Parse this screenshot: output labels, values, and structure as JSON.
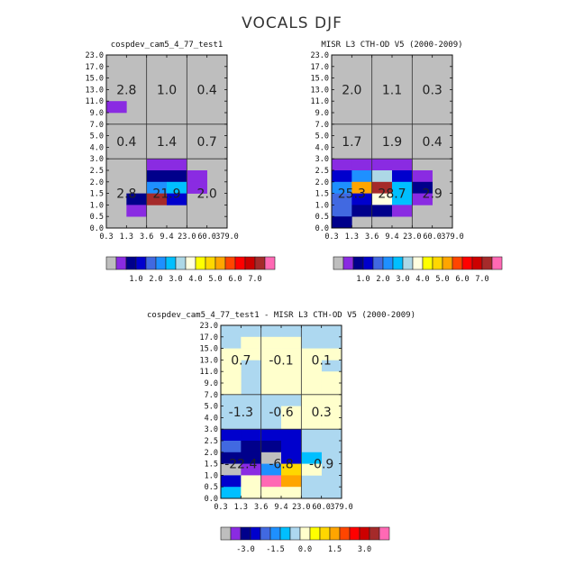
{
  "title": "VOCALS DJF",
  "chart_data": [
    {
      "type": "heatmap",
      "title": "cospdev_cam5_4_77_test1",
      "x_ticks": [
        "0.3",
        "1.3",
        "3.6",
        "9.4",
        "23.0",
        "60.0",
        "379.0"
      ],
      "y_ticks": [
        "0.0",
        "0.5",
        "1.0",
        "1.5",
        "2.0",
        "2.5",
        "3.0",
        "4.0",
        "5.0",
        "7.0",
        "9.0",
        "11.0",
        "13.0",
        "15.0",
        "17.0",
        "23.0"
      ],
      "background_color": "#bebebe",
      "colorbar": {
        "colors": [
          "#bebebe",
          "#8a2be2",
          "#00008b",
          "#0000cd",
          "#4169e1",
          "#1e90ff",
          "#00bfff",
          "#add8e6",
          "#ffffe0",
          "#ffff00",
          "#ffd700",
          "#ffa500",
          "#ff4500",
          "#ff0000",
          "#cc0000",
          "#a52a2a",
          "#ff69b4"
        ],
        "labels": [
          "1.0",
          "2.0",
          "3.0",
          "4.0",
          "5.0",
          "6.0",
          "7.0"
        ]
      },
      "cells": [
        {
          "x": 0,
          "y": 10,
          "color": "#8a2be2"
        },
        {
          "x": 2,
          "y": 5,
          "color": "#8a2be2"
        },
        {
          "x": 3,
          "y": 5,
          "color": "#8a2be2"
        },
        {
          "x": 2,
          "y": 4,
          "color": "#00008b"
        },
        {
          "x": 3,
          "y": 4,
          "color": "#00008b"
        },
        {
          "x": 4,
          "y": 4,
          "color": "#8a2be2"
        },
        {
          "x": 2,
          "y": 3,
          "color": "#1e90ff"
        },
        {
          "x": 3,
          "y": 3,
          "color": "#00bfff"
        },
        {
          "x": 4,
          "y": 3,
          "color": "#8a2be2"
        },
        {
          "x": 1,
          "y": 2,
          "color": "#00008b"
        },
        {
          "x": 2,
          "y": 2,
          "color": "#a52a2a"
        },
        {
          "x": 3,
          "y": 2,
          "color": "#0000cd"
        },
        {
          "x": 1,
          "y": 1,
          "color": "#8a2be2"
        }
      ],
      "region_totals": [
        {
          "label": "2.8",
          "col": 0,
          "row": 2
        },
        {
          "label": "1.0",
          "col": 1,
          "row": 2
        },
        {
          "label": "0.4",
          "col": 2,
          "row": 2
        },
        {
          "label": "0.4",
          "col": 0,
          "row": 1
        },
        {
          "label": "1.4",
          "col": 1,
          "row": 1
        },
        {
          "label": "0.7",
          "col": 2,
          "row": 1
        },
        {
          "label": "2.8",
          "col": 0,
          "row": 0
        },
        {
          "label": "21.9",
          "col": 1,
          "row": 0
        },
        {
          "label": "2.0",
          "col": 2,
          "row": 0
        }
      ]
    },
    {
      "type": "heatmap",
      "title": "MISR L3 CTH-OD V5 (2000-2009)",
      "x_ticks": [
        "0.3",
        "1.3",
        "3.6",
        "9.4",
        "23.0",
        "60.0",
        "379.0"
      ],
      "y_ticks": [
        "0.0",
        "0.5",
        "1.0",
        "1.5",
        "2.0",
        "2.5",
        "3.0",
        "4.0",
        "5.0",
        "7.0",
        "9.0",
        "11.0",
        "13.0",
        "15.0",
        "17.0",
        "23.0"
      ],
      "background_color": "#bebebe",
      "colorbar": {
        "colors": [
          "#bebebe",
          "#8a2be2",
          "#00008b",
          "#0000cd",
          "#4169e1",
          "#1e90ff",
          "#00bfff",
          "#add8e6",
          "#ffffe0",
          "#ffff00",
          "#ffd700",
          "#ffa500",
          "#ff4500",
          "#ff0000",
          "#cc0000",
          "#a52a2a",
          "#ff69b4"
        ],
        "labels": [
          "1.0",
          "2.0",
          "3.0",
          "4.0",
          "5.0",
          "6.0",
          "7.0"
        ]
      },
      "cells": [
        {
          "x": 0,
          "y": 5,
          "color": "#8a2be2"
        },
        {
          "x": 1,
          "y": 5,
          "color": "#8a2be2"
        },
        {
          "x": 2,
          "y": 5,
          "color": "#8a2be2"
        },
        {
          "x": 3,
          "y": 5,
          "color": "#8a2be2"
        },
        {
          "x": 0,
          "y": 4,
          "color": "#0000cd"
        },
        {
          "x": 1,
          "y": 4,
          "color": "#1e90ff"
        },
        {
          "x": 2,
          "y": 4,
          "color": "#add8e6"
        },
        {
          "x": 3,
          "y": 4,
          "color": "#0000cd"
        },
        {
          "x": 4,
          "y": 4,
          "color": "#8a2be2"
        },
        {
          "x": 0,
          "y": 3,
          "color": "#1e90ff"
        },
        {
          "x": 1,
          "y": 3,
          "color": "#ffa500"
        },
        {
          "x": 2,
          "y": 3,
          "color": "#a52a2a"
        },
        {
          "x": 3,
          "y": 3,
          "color": "#00bfff"
        },
        {
          "x": 4,
          "y": 3,
          "color": "#00008b"
        },
        {
          "x": 0,
          "y": 2,
          "color": "#4169e1"
        },
        {
          "x": 1,
          "y": 2,
          "color": "#0000cd"
        },
        {
          "x": 2,
          "y": 2,
          "color": "#ffffe0"
        },
        {
          "x": 3,
          "y": 2,
          "color": "#00bfff"
        },
        {
          "x": 4,
          "y": 2,
          "color": "#8a2be2"
        },
        {
          "x": 0,
          "y": 1,
          "color": "#4169e1"
        },
        {
          "x": 1,
          "y": 1,
          "color": "#00008b"
        },
        {
          "x": 2,
          "y": 1,
          "color": "#00008b"
        },
        {
          "x": 3,
          "y": 1,
          "color": "#8a2be2"
        },
        {
          "x": 0,
          "y": 0,
          "color": "#00008b"
        }
      ],
      "region_totals": [
        {
          "label": "2.0",
          "col": 0,
          "row": 2
        },
        {
          "label": "1.1",
          "col": 1,
          "row": 2
        },
        {
          "label": "0.3",
          "col": 2,
          "row": 2
        },
        {
          "label": "1.7",
          "col": 0,
          "row": 1
        },
        {
          "label": "1.9",
          "col": 1,
          "row": 1
        },
        {
          "label": "0.4",
          "col": 2,
          "row": 1
        },
        {
          "label": "25.3",
          "col": 0,
          "row": 0
        },
        {
          "label": "28.7",
          "col": 1,
          "row": 0
        },
        {
          "label": "2.9",
          "col": 2,
          "row": 0
        }
      ]
    },
    {
      "type": "heatmap",
      "title": "cospdev_cam5_4_77_test1 - MISR L3 CTH-OD V5 (2000-2009)",
      "x_ticks": [
        "0.3",
        "1.3",
        "3.6",
        "9.4",
        "23.0",
        "60.0",
        "379.0"
      ],
      "y_ticks": [
        "0.0",
        "0.5",
        "1.0",
        "1.5",
        "2.0",
        "2.5",
        "3.0",
        "4.0",
        "5.0",
        "7.0",
        "9.0",
        "11.0",
        "13.0",
        "15.0",
        "17.0",
        "23.0"
      ],
      "background_color": "#add8f0",
      "colorbar": {
        "colors": [
          "#bebebe",
          "#8a2be2",
          "#00008b",
          "#0000cd",
          "#4169e1",
          "#1e90ff",
          "#00bfff",
          "#add8f0",
          "#ffffcc",
          "#ffff00",
          "#ffd700",
          "#ffa500",
          "#ff4500",
          "#ff0000",
          "#cc0000",
          "#a52a2a",
          "#ff69b4"
        ],
        "labels": [
          "-3.0",
          "-1.5",
          "0.0",
          "1.5",
          "3.0"
        ]
      },
      "cells": [
        {
          "x": 1,
          "y": 13,
          "color": "#ffffcc"
        },
        {
          "x": 2,
          "y": 13,
          "color": "#ffffcc"
        },
        {
          "x": 3,
          "y": 13,
          "color": "#ffffcc"
        },
        {
          "x": 0,
          "y": 12,
          "color": "#ffffcc"
        },
        {
          "x": 1,
          "y": 12,
          "color": "#ffffcc"
        },
        {
          "x": 2,
          "y": 12,
          "color": "#ffffcc"
        },
        {
          "x": 3,
          "y": 12,
          "color": "#ffffcc"
        },
        {
          "x": 4,
          "y": 12,
          "color": "#ffffcc"
        },
        {
          "x": 5,
          "y": 12,
          "color": "#ffffcc"
        },
        {
          "x": 0,
          "y": 11,
          "color": "#ffffcc"
        },
        {
          "x": 2,
          "y": 11,
          "color": "#ffffcc"
        },
        {
          "x": 3,
          "y": 11,
          "color": "#ffffcc"
        },
        {
          "x": 4,
          "y": 11,
          "color": "#ffffcc"
        },
        {
          "x": 0,
          "y": 10,
          "color": "#ffffcc"
        },
        {
          "x": 2,
          "y": 10,
          "color": "#ffffcc"
        },
        {
          "x": 3,
          "y": 10,
          "color": "#ffffcc"
        },
        {
          "x": 4,
          "y": 10,
          "color": "#ffffcc"
        },
        {
          "x": 5,
          "y": 10,
          "color": "#ffffcc"
        },
        {
          "x": 0,
          "y": 9,
          "color": "#ffffcc"
        },
        {
          "x": 2,
          "y": 9,
          "color": "#ffffcc"
        },
        {
          "x": 3,
          "y": 9,
          "color": "#ffffcc"
        },
        {
          "x": 4,
          "y": 9,
          "color": "#ffffcc"
        },
        {
          "x": 5,
          "y": 9,
          "color": "#ffffcc"
        },
        {
          "x": 4,
          "y": 8,
          "color": "#ffffcc"
        },
        {
          "x": 5,
          "y": 8,
          "color": "#ffffcc"
        },
        {
          "x": 3,
          "y": 7,
          "color": "#ffffcc"
        },
        {
          "x": 4,
          "y": 7,
          "color": "#ffffcc"
        },
        {
          "x": 5,
          "y": 7,
          "color": "#ffffcc"
        },
        {
          "x": 3,
          "y": 6,
          "color": "#ffffcc"
        },
        {
          "x": 4,
          "y": 6,
          "color": "#ffffcc"
        },
        {
          "x": 5,
          "y": 6,
          "color": "#ffffcc"
        },
        {
          "x": 0,
          "y": 5,
          "color": "#0000cd"
        },
        {
          "x": 1,
          "y": 5,
          "color": "#0000cd"
        },
        {
          "x": 2,
          "y": 5,
          "color": "#0000cd"
        },
        {
          "x": 3,
          "y": 5,
          "color": "#0000cd"
        },
        {
          "x": 0,
          "y": 4,
          "color": "#4169e1"
        },
        {
          "x": 1,
          "y": 4,
          "color": "#00008b"
        },
        {
          "x": 2,
          "y": 4,
          "color": "#00008b"
        },
        {
          "x": 3,
          "y": 4,
          "color": "#0000cd"
        },
        {
          "x": 0,
          "y": 3,
          "color": "#00008b"
        },
        {
          "x": 1,
          "y": 3,
          "color": "#00008b"
        },
        {
          "x": 2,
          "y": 3,
          "color": "#bebebe"
        },
        {
          "x": 3,
          "y": 3,
          "color": "#0000cd"
        },
        {
          "x": 4,
          "y": 3,
          "color": "#00bfff"
        },
        {
          "x": 0,
          "y": 2,
          "color": "#bebebe"
        },
        {
          "x": 1,
          "y": 2,
          "color": "#8a2be2"
        },
        {
          "x": 2,
          "y": 2,
          "color": "#1e90ff"
        },
        {
          "x": 3,
          "y": 2,
          "color": "#ffd700"
        },
        {
          "x": 4,
          "y": 2,
          "color": "#ffffcc"
        },
        {
          "x": 0,
          "y": 1,
          "color": "#0000cd"
        },
        {
          "x": 1,
          "y": 1,
          "color": "#ffffcc"
        },
        {
          "x": 2,
          "y": 1,
          "color": "#ff69b4"
        },
        {
          "x": 3,
          "y": 1,
          "color": "#ffa500"
        },
        {
          "x": 0,
          "y": 0,
          "color": "#00bfff"
        },
        {
          "x": 1,
          "y": 0,
          "color": "#ffffcc"
        },
        {
          "x": 2,
          "y": 0,
          "color": "#ffffcc"
        },
        {
          "x": 3,
          "y": 0,
          "color": "#ffffcc"
        }
      ],
      "region_totals": [
        {
          "label": "0.7",
          "col": 0,
          "row": 2
        },
        {
          "label": "-0.1",
          "col": 1,
          "row": 2
        },
        {
          "label": "0.1",
          "col": 2,
          "row": 2
        },
        {
          "label": "-1.3",
          "col": 0,
          "row": 1
        },
        {
          "label": "-0.6",
          "col": 1,
          "row": 1
        },
        {
          "label": "0.3",
          "col": 2,
          "row": 1
        },
        {
          "label": "-22.4",
          "col": 0,
          "row": 0
        },
        {
          "label": "-6.8",
          "col": 1,
          "row": 0
        },
        {
          "label": "-0.9",
          "col": 2,
          "row": 0
        }
      ]
    }
  ]
}
